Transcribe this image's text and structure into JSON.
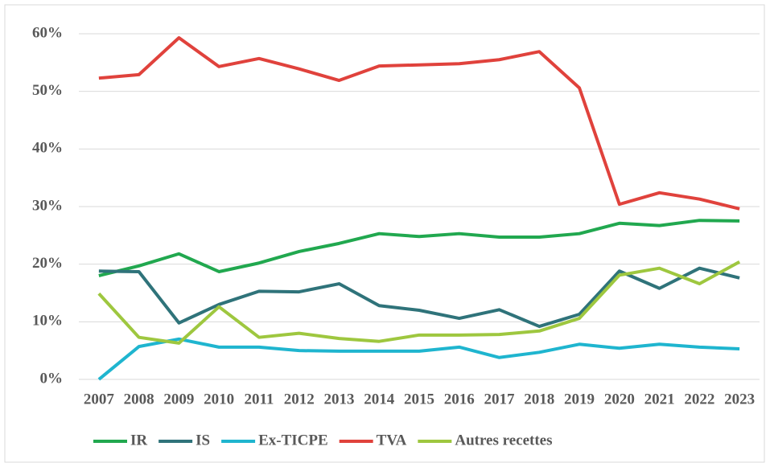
{
  "chart_data": {
    "type": "line",
    "categories": [
      "2007",
      "2008",
      "2009",
      "2010",
      "2011",
      "2012",
      "2013",
      "2014",
      "2015",
      "2016",
      "2017",
      "2018",
      "2019",
      "2020",
      "2021",
      "2022",
      "2023"
    ],
    "series": [
      {
        "name": "IR",
        "color": "#21a84f",
        "values": [
          18.0,
          19.7,
          21.8,
          18.7,
          20.2,
          22.2,
          23.6,
          25.3,
          24.8,
          25.3,
          24.7,
          24.7,
          25.3,
          27.1,
          26.7,
          27.6,
          27.5
        ]
      },
      {
        "name": "IS",
        "color": "#2f737a",
        "values": [
          18.8,
          18.7,
          9.8,
          13.0,
          15.3,
          15.2,
          16.6,
          12.8,
          12.0,
          10.6,
          12.1,
          9.2,
          11.3,
          18.8,
          15.8,
          19.3,
          17.6
        ]
      },
      {
        "name": "Ex-TICPE",
        "color": "#1fb5cf",
        "values": [
          0,
          5.7,
          7.0,
          5.6,
          5.6,
          5.0,
          4.9,
          4.9,
          4.9,
          5.6,
          3.8,
          4.7,
          6.1,
          5.4,
          6.1,
          5.6,
          5.3
        ]
      },
      {
        "name": "TVA",
        "color": "#e0423c",
        "values": [
          52.3,
          52.9,
          59.3,
          54.3,
          55.7,
          53.9,
          51.9,
          54.4,
          54.6,
          54.8,
          55.5,
          56.9,
          50.6,
          30.4,
          32.4,
          31.3,
          29.6
        ]
      },
      {
        "name": "Autres recettes",
        "color": "#9ec73f",
        "values": [
          14.9,
          7.3,
          6.3,
          12.6,
          7.3,
          8.0,
          7.1,
          6.6,
          7.7,
          7.7,
          7.8,
          8.4,
          10.6,
          18.1,
          19.3,
          16.6,
          20.4
        ]
      }
    ],
    "ylim": [
      0,
      60
    ],
    "yticks": [
      {
        "value": 0,
        "label": "0%"
      },
      {
        "value": 10,
        "label": "10%"
      },
      {
        "value": 20,
        "label": "20%"
      },
      {
        "value": 30,
        "label": "30%"
      },
      {
        "value": 40,
        "label": "40%"
      },
      {
        "value": 50,
        "label": "50%"
      },
      {
        "value": 60,
        "label": "60%"
      }
    ],
    "grid": true,
    "legend": "bottom"
  }
}
